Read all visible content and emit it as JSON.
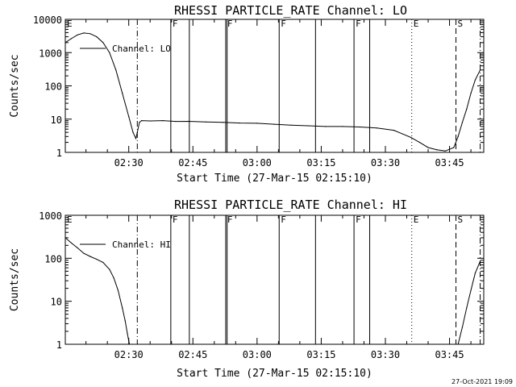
{
  "chart_data": [
    {
      "type": "line",
      "title": "RHESSI PARTICLE_RATE Channel: LO",
      "xlabel": "Start Time (27-Mar-15 02:15:10)",
      "ylabel": "Counts/sec",
      "yscale": "log",
      "ylim": [
        1,
        10000
      ],
      "xlim": [
        "02:15:10",
        "03:53:00"
      ],
      "ytick_labels": [
        "1",
        "10",
        "100",
        "1000",
        "10000"
      ],
      "xtick_labels": [
        "02:30",
        "02:45",
        "03:00",
        "03:15",
        "03:30",
        "03:45"
      ],
      "legend": {
        "position": "top-left",
        "entries": [
          "Channel: LO"
        ]
      },
      "grid": false,
      "markers": [
        {
          "label": "E",
          "time": "02:15:10",
          "style": "none"
        },
        {
          "label": "",
          "time": "02:32:00",
          "style": "dashdot"
        },
        {
          "label": "F",
          "time": "02:39:50",
          "style": "solid"
        },
        {
          "label": "",
          "time": "02:44:10",
          "style": "solid"
        },
        {
          "label": "F",
          "time": "02:52:40",
          "style": "solid"
        },
        {
          "label": "",
          "time": "02:53:00",
          "style": "solid"
        },
        {
          "label": "F",
          "time": "03:05:10",
          "style": "solid"
        },
        {
          "label": "",
          "time": "03:13:40",
          "style": "solid"
        },
        {
          "label": "F",
          "time": "03:22:40",
          "style": "solid"
        },
        {
          "label": "",
          "time": "03:26:20",
          "style": "solid"
        },
        {
          "label": "E",
          "time": "03:36:10",
          "style": "dotted"
        },
        {
          "label": "S",
          "time": "03:46:30",
          "style": "dashed"
        },
        {
          "label": "",
          "time": "03:52:10",
          "style": "dashdot"
        }
      ],
      "series": [
        {
          "name": "Channel: LO",
          "x": [
            "02:15:10",
            "02:16:30",
            "02:18:00",
            "02:19:30",
            "02:21:00",
            "02:22:30",
            "02:24:00",
            "02:25:30",
            "02:27:00",
            "02:28:30",
            "02:30:00",
            "02:31:00",
            "02:31:40",
            "02:32:00",
            "02:32:30",
            "02:33:00",
            "02:35:00",
            "02:38:00",
            "02:41:00",
            "02:44:00",
            "02:48:00",
            "02:52:00",
            "02:56:00",
            "03:00:00",
            "03:04:00",
            "03:08:00",
            "03:12:00",
            "03:16:00",
            "03:20:00",
            "03:24:00",
            "03:28:00",
            "03:32:00",
            "03:34:00",
            "03:36:00",
            "03:38:00",
            "03:40:00",
            "03:42:00",
            "03:44:00",
            "03:46:00",
            "03:47:00",
            "03:48:00",
            "03:49:00",
            "03:50:00",
            "03:51:00",
            "03:52:10"
          ],
          "y": [
            2000,
            2600,
            3400,
            3900,
            3700,
            3000,
            2000,
            1000,
            300,
            60,
            12,
            4,
            2.6,
            4,
            8,
            9,
            8.8,
            9,
            8.5,
            8.6,
            8.2,
            8,
            7.6,
            7.5,
            7,
            6.6,
            6.3,
            6,
            6,
            5.8,
            5.4,
            4.6,
            3.6,
            2.8,
            2,
            1.4,
            1.2,
            1.1,
            1.4,
            3,
            8,
            20,
            60,
            150,
            300
          ]
        }
      ]
    },
    {
      "type": "line",
      "title": "RHESSI PARTICLE_RATE Channel: HI",
      "xlabel": "Start Time (27-Mar-15 02:15:10)",
      "ylabel": "Counts/sec",
      "yscale": "log",
      "ylim": [
        1,
        1000
      ],
      "xlim": [
        "02:15:10",
        "03:53:00"
      ],
      "ytick_labels": [
        "1",
        "10",
        "100",
        "1000"
      ],
      "xtick_labels": [
        "02:30",
        "02:45",
        "03:00",
        "03:15",
        "03:30",
        "03:45"
      ],
      "legend": {
        "position": "top-left",
        "entries": [
          "Channel: HI"
        ]
      },
      "grid": false,
      "markers": [
        {
          "label": "E",
          "time": "02:15:10",
          "style": "none"
        },
        {
          "label": "",
          "time": "02:32:00",
          "style": "dashdot"
        },
        {
          "label": "F",
          "time": "02:39:50",
          "style": "solid"
        },
        {
          "label": "",
          "time": "02:44:10",
          "style": "solid"
        },
        {
          "label": "F",
          "time": "02:52:40",
          "style": "solid"
        },
        {
          "label": "",
          "time": "02:53:00",
          "style": "solid"
        },
        {
          "label": "F",
          "time": "03:05:10",
          "style": "solid"
        },
        {
          "label": "",
          "time": "03:13:40",
          "style": "solid"
        },
        {
          "label": "F",
          "time": "03:22:40",
          "style": "solid"
        },
        {
          "label": "",
          "time": "03:26:20",
          "style": "solid"
        },
        {
          "label": "E",
          "time": "03:36:10",
          "style": "dotted"
        },
        {
          "label": "S",
          "time": "03:46:30",
          "style": "dashed"
        },
        {
          "label": "",
          "time": "03:52:10",
          "style": "dashdot"
        }
      ],
      "series": [
        {
          "name": "Channel: HI",
          "x": [
            "02:15:10",
            "02:16:30",
            "02:18:00",
            "02:19:30",
            "02:21:00",
            "02:22:30",
            "02:24:00",
            "02:25:30",
            "02:26:30",
            "02:27:30",
            "02:28:30",
            "02:29:10",
            "02:29:40",
            "02:30:00",
            "02:30:10",
            "03:47:00",
            "03:48:00",
            "03:49:00",
            "03:50:00",
            "03:51:00",
            "03:52:10"
          ],
          "y": [
            300,
            230,
            175,
            130,
            110,
            95,
            80,
            55,
            35,
            18,
            7,
            3.5,
            1.8,
            1.2,
            1,
            1,
            2.5,
            7,
            18,
            45,
            85
          ]
        }
      ]
    }
  ],
  "timestamp": "27-Oct-2021 19:09"
}
